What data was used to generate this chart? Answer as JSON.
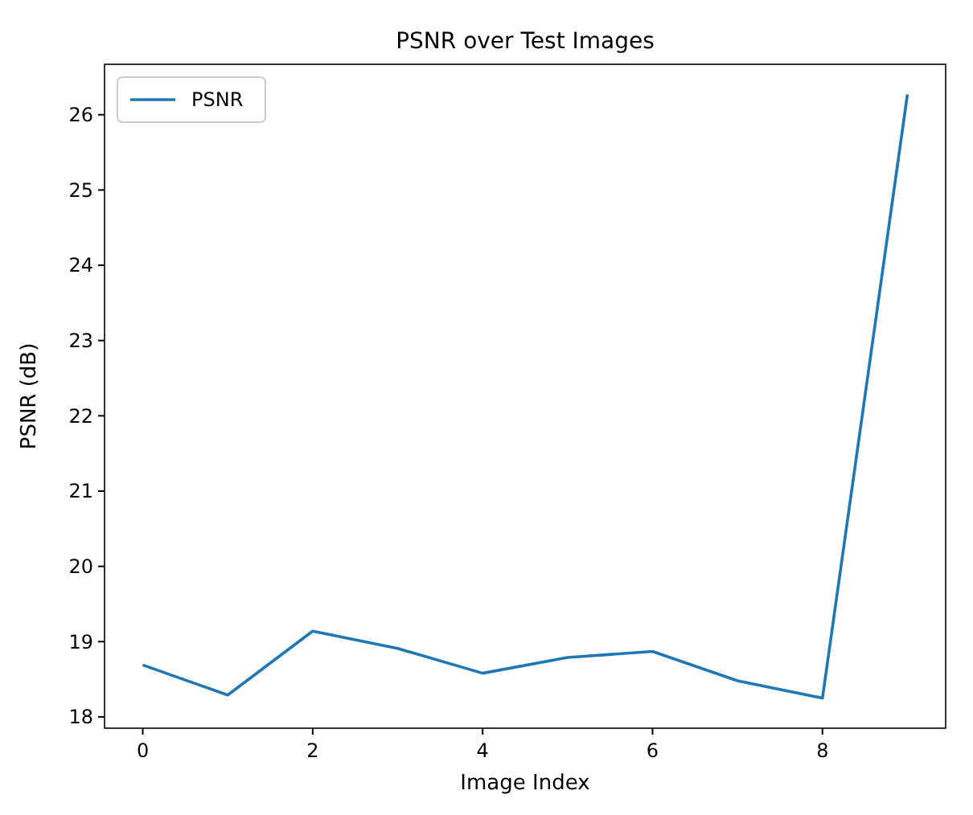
{
  "chart_data": {
    "type": "line",
    "title": "PSNR over Test Images",
    "xlabel": "Image Index",
    "ylabel": "PSNR (dB)",
    "x": [
      0,
      1,
      2,
      3,
      4,
      5,
      6,
      7,
      8,
      9
    ],
    "series": [
      {
        "name": "PSNR",
        "color": "#1f77b4",
        "values": [
          18.69,
          18.29,
          19.14,
          18.91,
          18.58,
          18.79,
          18.87,
          18.48,
          18.25,
          26.27
        ]
      }
    ],
    "xlim": [
      -0.45,
      9.45
    ],
    "xticks": [
      0,
      2,
      4,
      6,
      8
    ],
    "ylim": [
      17.85,
      26.67
    ],
    "yticks": [
      18,
      19,
      20,
      21,
      22,
      23,
      24,
      25,
      26
    ],
    "grid": false,
    "legend": "top left",
    "line_style": "solid",
    "marker": "none"
  }
}
